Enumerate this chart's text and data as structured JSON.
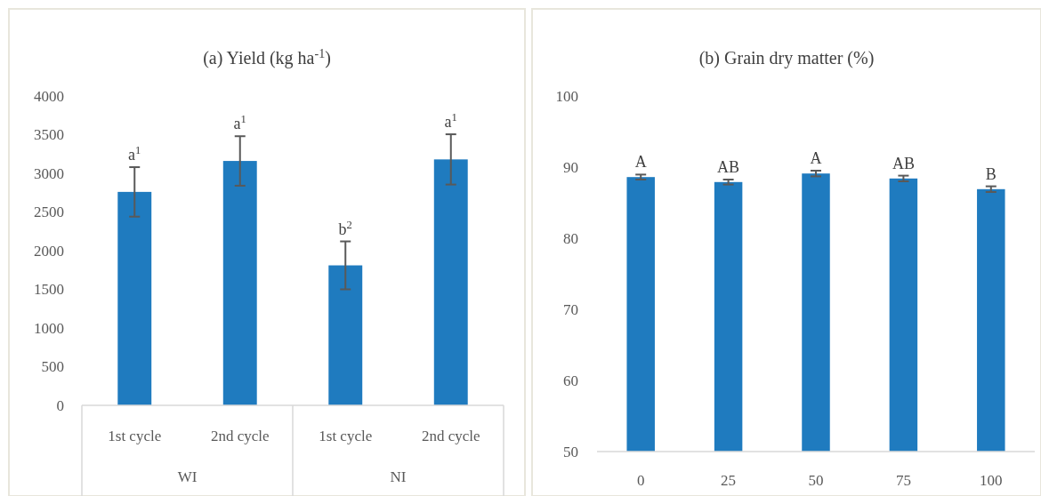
{
  "chart_data": [
    {
      "type": "bar",
      "title": "(a) Yield (kg ha$^{-1}$)",
      "categories": [
        "1st cycle",
        "2nd cycle",
        "1st cycle",
        "2nd cycle"
      ],
      "values": [
        2760,
        3160,
        1810,
        3180
      ],
      "errors": [
        320,
        320,
        310,
        325
      ],
      "color": "#1f7bbf",
      "ylim": [
        0,
        4000
      ],
      "yticks": [
        0,
        500,
        1000,
        1500,
        2000,
        2500,
        3000,
        3500,
        4000
      ],
      "grid": false,
      "annotations": [
        "a$^{1}$",
        "a$^{1}$",
        "b$^{2}$",
        "a$^{1}$",
        "WI",
        "NI"
      ]
    },
    {
      "type": "bar",
      "title": "(b) Grain dry matter (%)",
      "categories": [
        "0",
        "25",
        "50",
        "75",
        "100"
      ],
      "values": [
        88.6,
        87.9,
        89.1,
        88.4,
        86.9
      ],
      "errors": [
        0.35,
        0.35,
        0.4,
        0.4,
        0.4
      ],
      "color": "#1f7bbf",
      "ylim": [
        50,
        100
      ],
      "yticks": [
        50,
        60,
        70,
        80,
        90,
        100
      ],
      "grid": false,
      "annotations": [
        "A",
        "AB",
        "A",
        "AB",
        "B"
      ]
    }
  ]
}
